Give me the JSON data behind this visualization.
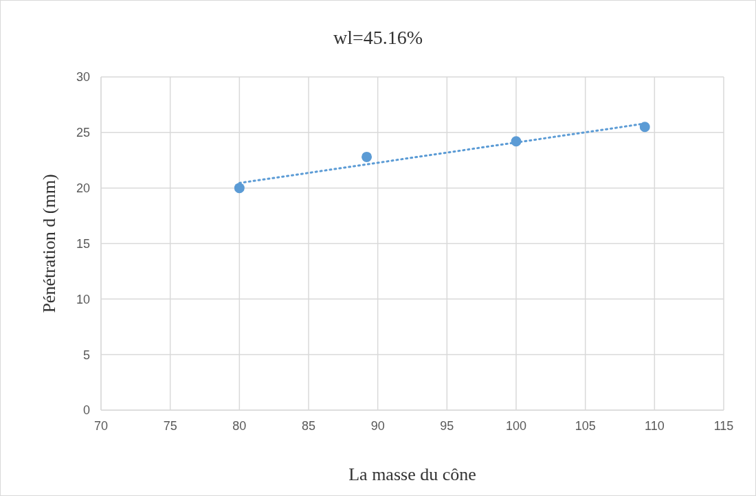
{
  "chart_data": {
    "type": "scatter",
    "title": "wl=45.16%",
    "xlabel": "La masse du cône",
    "ylabel": "Pénétration d (mm)",
    "xlim": [
      70,
      115
    ],
    "xticks": [
      70,
      75,
      80,
      85,
      90,
      95,
      100,
      105,
      110,
      115
    ],
    "ylim": [
      0,
      30
    ],
    "yticks": [
      0,
      5,
      10,
      15,
      20,
      25,
      30
    ],
    "grid": true,
    "series": [
      {
        "color": "#5b9bd5",
        "marker": "circle",
        "x": [
          80,
          89.2,
          100,
          109.3
        ],
        "values": [
          20,
          22.8,
          24.2,
          25.5
        ]
      },
      {
        "type": "line",
        "color": "#5b9bd5",
        "marker": "none",
        "line_style": "dotted",
        "x": [
          80,
          109.3
        ],
        "values": [
          20.45,
          25.8
        ]
      }
    ]
  }
}
